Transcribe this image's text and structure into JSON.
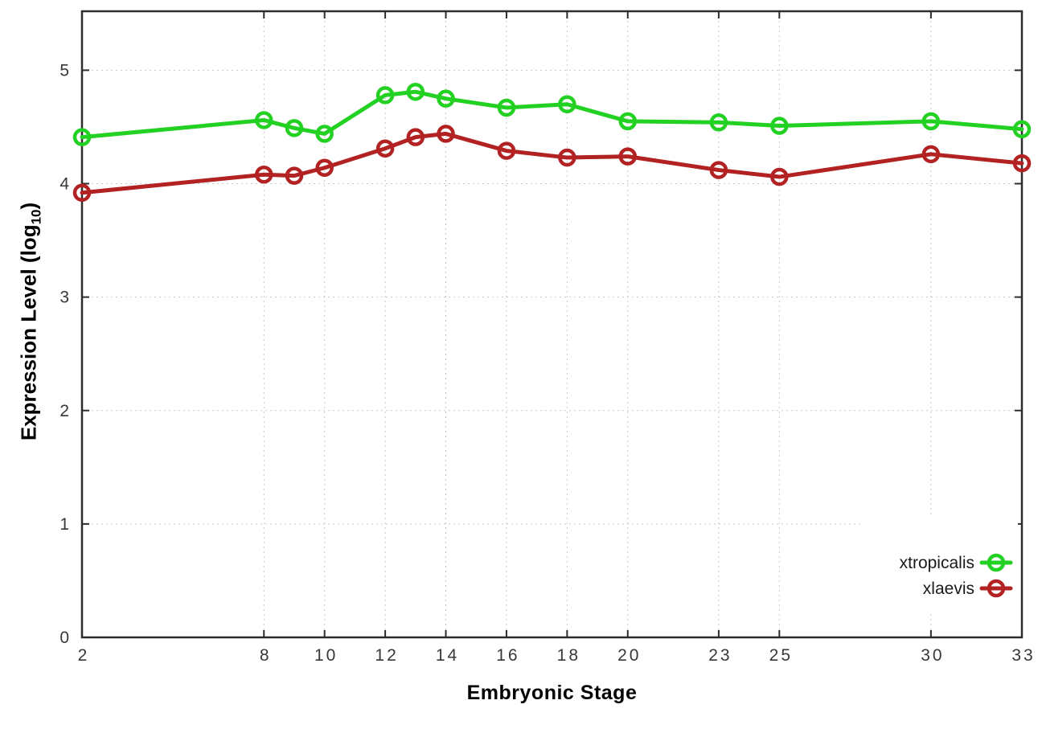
{
  "figure": {
    "title": "",
    "xlabel": "Embryonic Stage",
    "ylabel_main": "Expression Level (log",
    "ylabel_sub": "10",
    "ylabel_close": ")"
  },
  "chart_data": {
    "type": "line",
    "x": [
      2,
      8,
      9,
      10,
      12,
      13,
      14,
      16,
      18,
      20,
      23,
      25,
      30,
      33
    ],
    "series": [
      {
        "name": "xtropicalis",
        "color": "#23d123",
        "values": [
          4.41,
          4.56,
          4.49,
          4.44,
          4.78,
          4.81,
          4.75,
          4.67,
          4.7,
          4.55,
          4.54,
          4.51,
          4.55,
          4.48
        ]
      },
      {
        "name": "xlaevis",
        "color": "#b22222",
        "values": [
          3.92,
          4.08,
          4.07,
          4.14,
          4.31,
          4.41,
          4.44,
          4.29,
          4.23,
          4.24,
          4.12,
          4.06,
          4.26,
          4.18
        ]
      }
    ],
    "title": "",
    "xlabel": "Embryonic Stage",
    "ylabel": "Expression Level (log10)",
    "xlim": [
      2,
      33
    ],
    "ylim": [
      0,
      5.52
    ],
    "xticks": [
      2,
      8,
      10,
      12,
      14,
      16,
      18,
      20,
      23,
      25,
      30,
      33
    ],
    "yticks": [
      0,
      1,
      2,
      3,
      4,
      5
    ],
    "grid": true,
    "legend_position": "bottom-right",
    "marker": "open-circle",
    "colors": {
      "background": "#ffffff",
      "axis": "#2d2d2d",
      "grid": "#c8c8c8",
      "tick_label": "#383838",
      "legend_text": "#1a1a1a"
    }
  }
}
